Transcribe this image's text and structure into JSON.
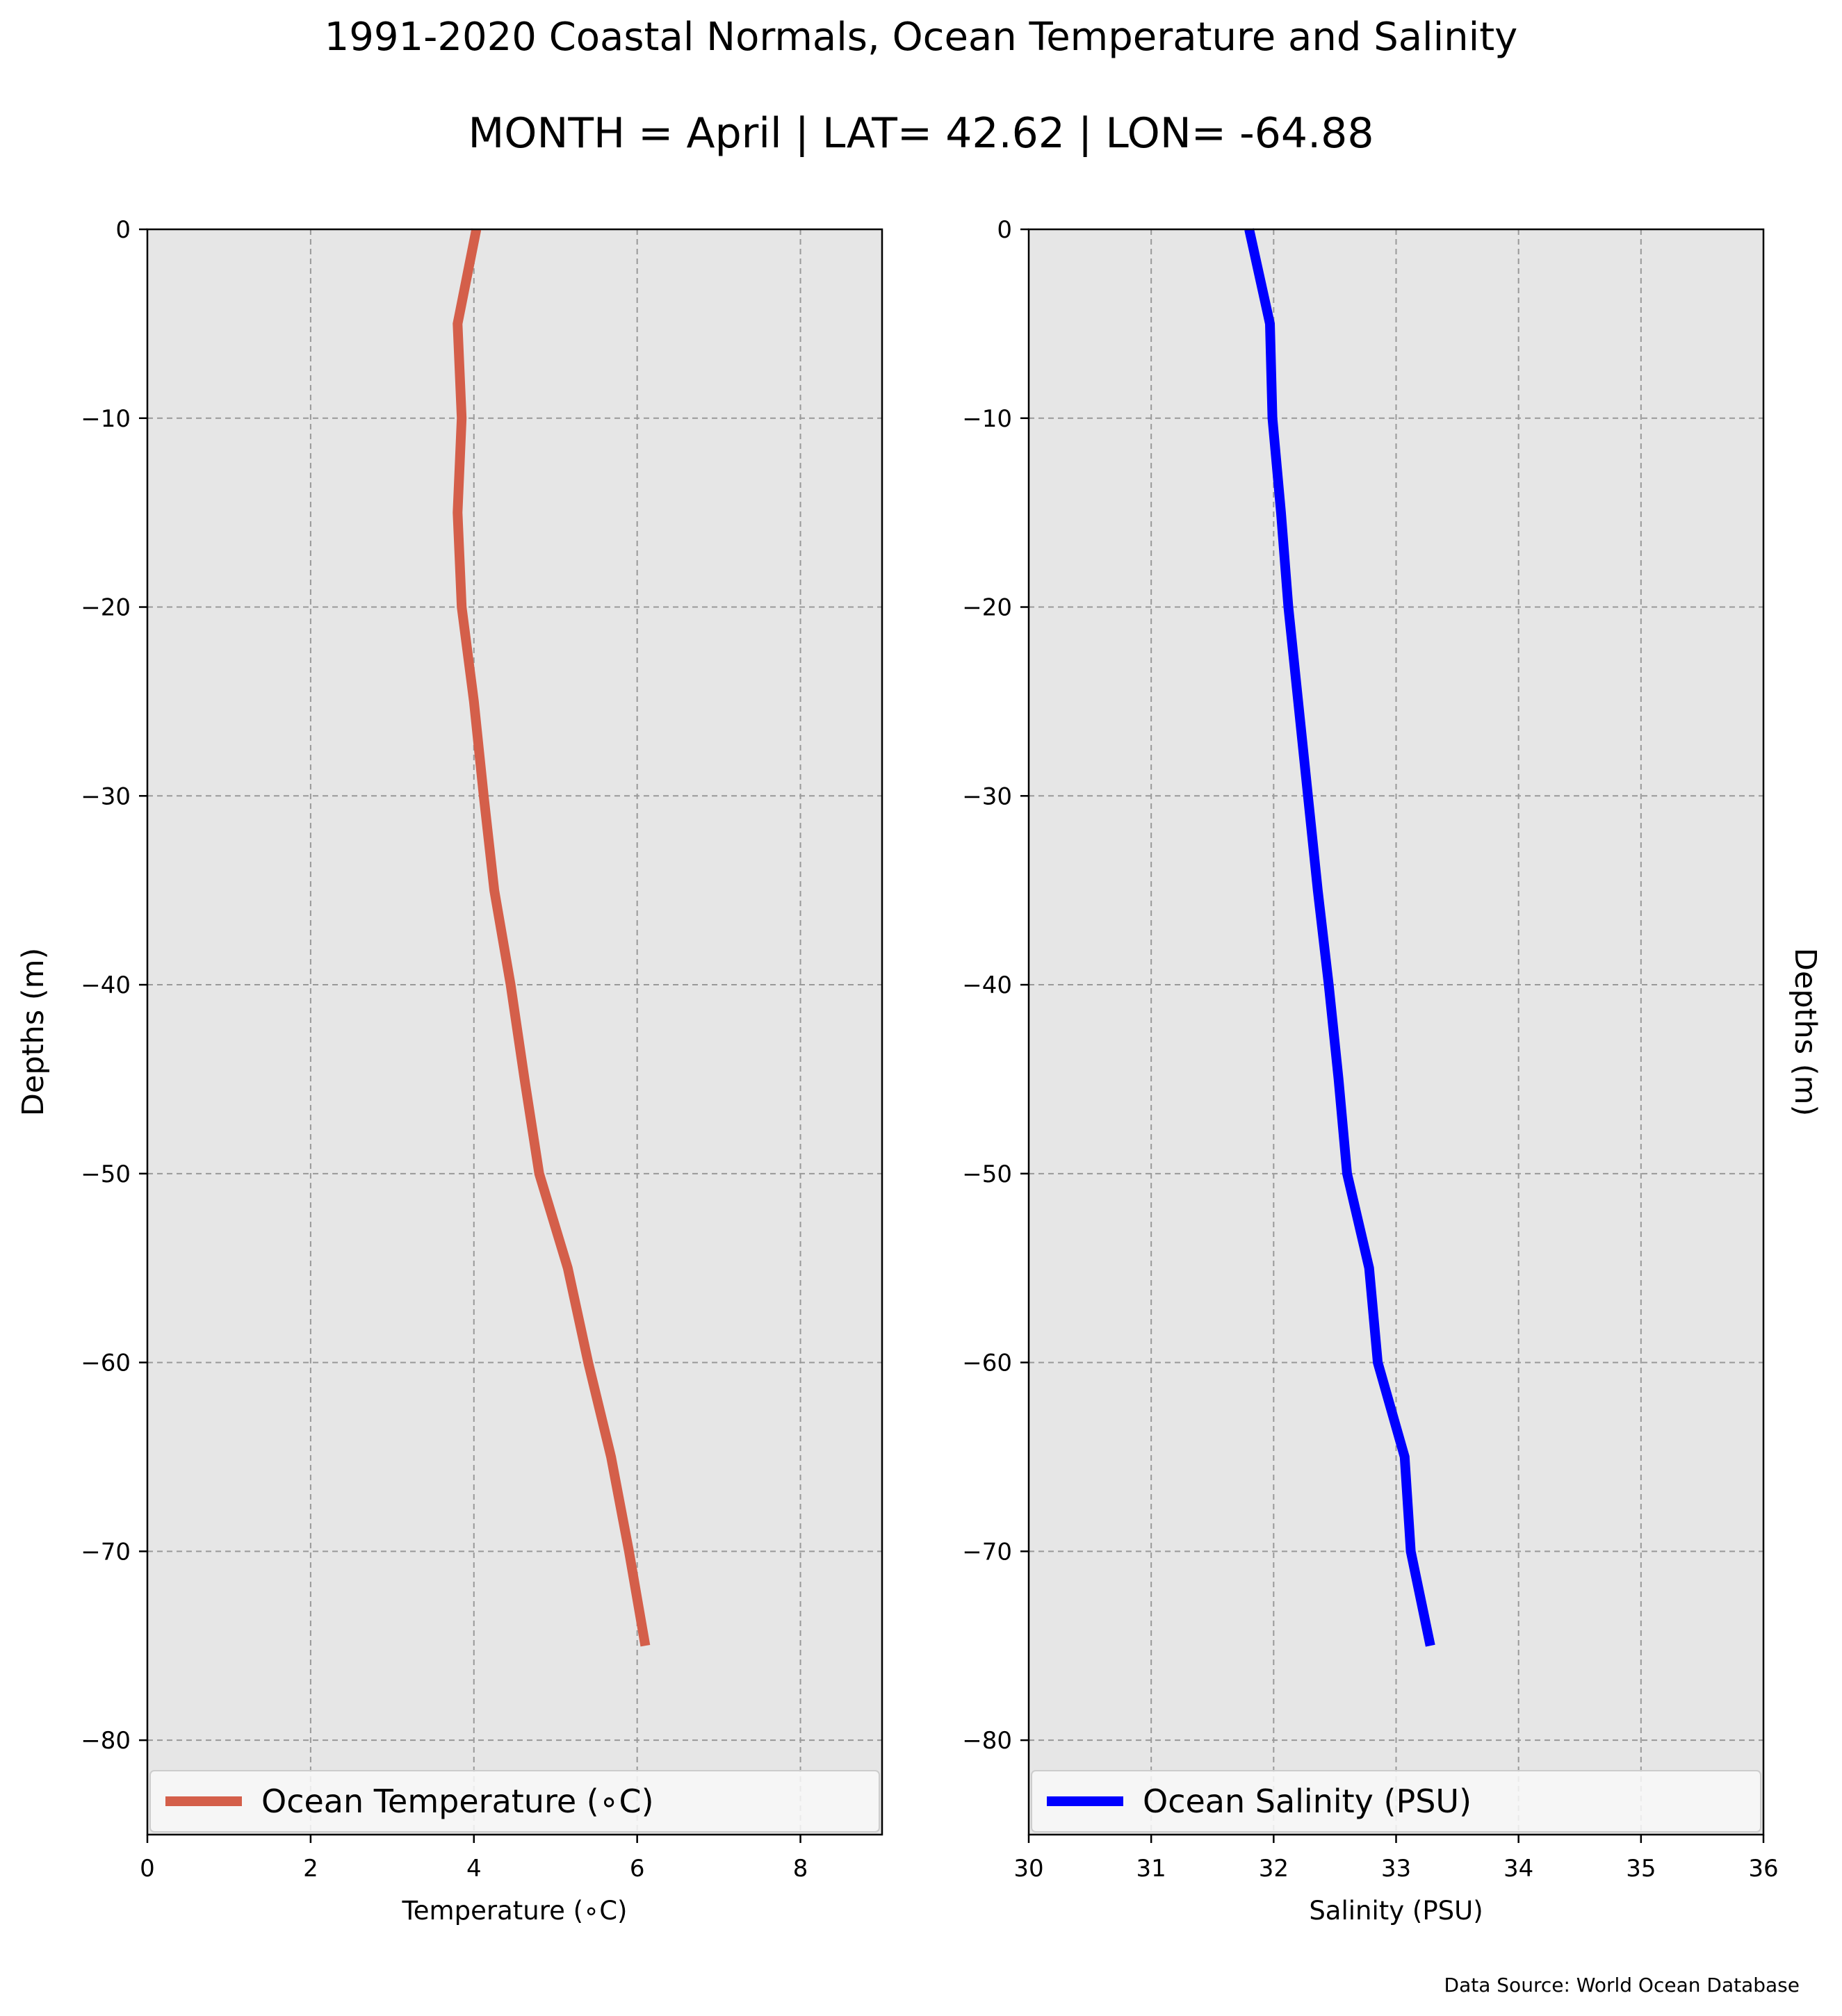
{
  "header": {
    "title": "1991-2020 Coastal Normals, Ocean Temperature and Salinity",
    "subtitle": "MONTH = April | LAT= 42.62 | LON= -64.88"
  },
  "footer": {
    "source": "Data Source: World Ocean Database"
  },
  "colors": {
    "background": "#ffffff",
    "plot_background": "#e6e6e6",
    "temperature_line": "#d45f4a",
    "salinity_line": "#0000ff",
    "legend_background": "#f8f8f8"
  },
  "chart_data": [
    {
      "type": "line",
      "xlabel": "Temperature ($^\\circ$C)",
      "xlabel_display": "Temperature (∘C)",
      "ylabel": "Depths (m)",
      "xlim": [
        0,
        9
      ],
      "ylim": [
        -85,
        0
      ],
      "xticks": [
        0,
        2,
        4,
        6,
        8
      ],
      "yticks": [
        0,
        -10,
        -20,
        -30,
        -40,
        -50,
        -60,
        -70,
        -80
      ],
      "grid": true,
      "legend_position": "lower center",
      "series": [
        {
          "name": "Ocean Temperature (∘C)",
          "color": "#d45f4a",
          "points": [
            {
              "x": 4.03,
              "y": 0
            },
            {
              "x": 3.8,
              "y": -5
            },
            {
              "x": 3.85,
              "y": -10
            },
            {
              "x": 3.8,
              "y": -15
            },
            {
              "x": 3.85,
              "y": -20
            },
            {
              "x": 4.0,
              "y": -25
            },
            {
              "x": 4.12,
              "y": -30
            },
            {
              "x": 4.25,
              "y": -35
            },
            {
              "x": 4.45,
              "y": -40
            },
            {
              "x": 4.62,
              "y": -45
            },
            {
              "x": 4.8,
              "y": -50
            },
            {
              "x": 5.15,
              "y": -55
            },
            {
              "x": 5.4,
              "y": -60
            },
            {
              "x": 5.68,
              "y": -65
            },
            {
              "x": 5.9,
              "y": -70
            },
            {
              "x": 6.1,
              "y": -75
            }
          ]
        }
      ]
    },
    {
      "type": "line",
      "xlabel": "Salinity (PSU)",
      "ylabel": "Depths (m)",
      "xlim": [
        30,
        36
      ],
      "ylim": [
        -85,
        0
      ],
      "xticks": [
        30,
        31,
        32,
        33,
        34,
        35,
        36
      ],
      "yticks": [
        0,
        -10,
        -20,
        -30,
        -40,
        -50,
        -60,
        -70,
        -80
      ],
      "grid": true,
      "legend_position": "lower center",
      "series": [
        {
          "name": "Ocean Salinity (PSU)",
          "color": "#0000ff",
          "points": [
            {
              "x": 31.8,
              "y": 0
            },
            {
              "x": 31.97,
              "y": -5
            },
            {
              "x": 31.99,
              "y": -10
            },
            {
              "x": 32.06,
              "y": -15
            },
            {
              "x": 32.12,
              "y": -20
            },
            {
              "x": 32.2,
              "y": -25
            },
            {
              "x": 32.28,
              "y": -30
            },
            {
              "x": 32.36,
              "y": -35
            },
            {
              "x": 32.45,
              "y": -40
            },
            {
              "x": 32.53,
              "y": -45
            },
            {
              "x": 32.6,
              "y": -50
            },
            {
              "x": 32.78,
              "y": -55
            },
            {
              "x": 32.85,
              "y": -60
            },
            {
              "x": 33.07,
              "y": -65
            },
            {
              "x": 33.12,
              "y": -70
            },
            {
              "x": 33.28,
              "y": -75
            }
          ]
        }
      ]
    }
  ]
}
